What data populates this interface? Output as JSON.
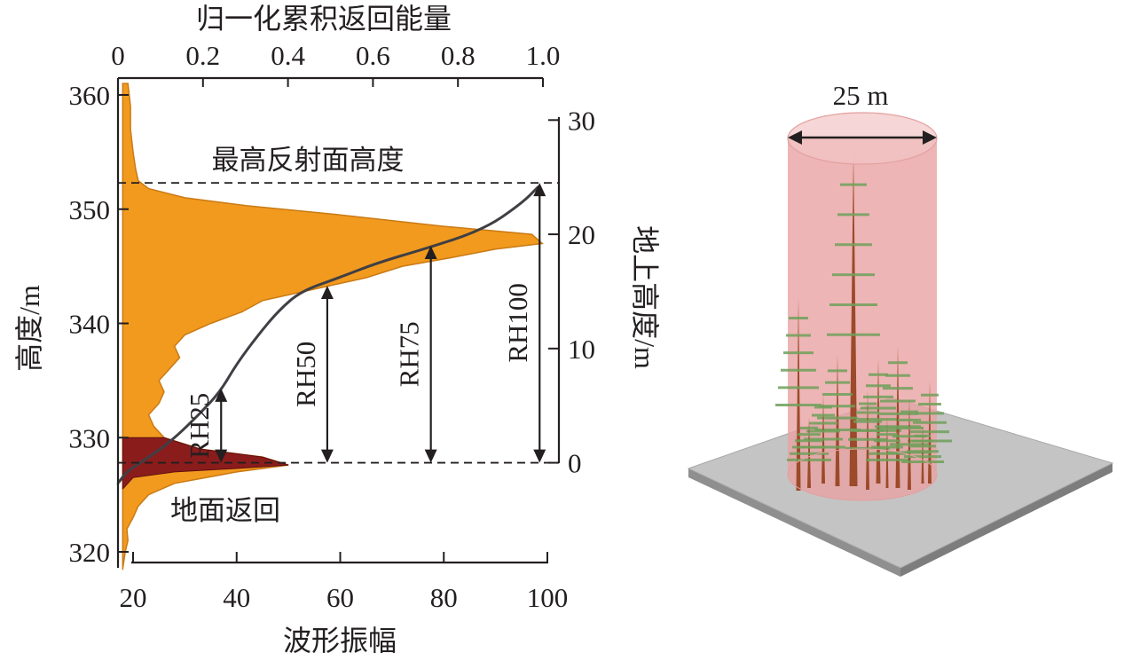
{
  "chart_data": [
    {
      "type": "area",
      "title": "",
      "bottom_axis": {
        "label": "波形振幅",
        "range": [
          20,
          100
        ],
        "ticks": [
          "20",
          "40",
          "60",
          "80",
          "100"
        ]
      },
      "top_axis": {
        "label": "归一化累积返回能量",
        "range": [
          0,
          1.0
        ],
        "ticks": [
          "0",
          "0.2",
          "0.4",
          "0.6",
          "0.8",
          "1.0"
        ]
      },
      "left_axis": {
        "label": "高度/m",
        "range": [
          318.5,
          362
        ],
        "ticks": [
          "320",
          "330",
          "340",
          "350",
          "360"
        ]
      },
      "right_axis": {
        "label": "地上高度/m",
        "range": [
          -2.5,
          31
        ],
        "ticks": [
          "0",
          "10",
          "20",
          "30"
        ]
      },
      "series": [
        {
          "name": "",
          "kind": "waveform",
          "color": "#f29a1e",
          "note": "amplitude vs height",
          "points": [
            [
              18,
              318.5
            ],
            [
              18.5,
              320
            ],
            [
              19,
              321
            ],
            [
              18.8,
              322
            ],
            [
              20,
              323
            ],
            [
              21,
              324
            ],
            [
              23,
              325
            ],
            [
              28,
              326
            ],
            [
              40,
              327
            ],
            [
              50,
              327.6
            ],
            [
              45,
              328.3
            ],
            [
              33,
              329
            ],
            [
              26,
              330
            ],
            [
              24,
              331
            ],
            [
              23,
              332
            ],
            [
              25,
              333
            ],
            [
              26,
              334
            ],
            [
              25,
              335
            ],
            [
              27,
              336
            ],
            [
              29,
              337
            ],
            [
              28,
              338
            ],
            [
              30,
              339
            ],
            [
              35,
              340
            ],
            [
              41,
              341
            ],
            [
              45,
              342
            ],
            [
              55,
              343
            ],
            [
              65,
              344
            ],
            [
              72,
              345
            ],
            [
              82,
              345.8
            ],
            [
              90,
              346.5
            ],
            [
              99,
              347
            ],
            [
              97,
              347.8
            ],
            [
              80,
              348.5
            ],
            [
              60,
              349.5
            ],
            [
              42,
              350.3
            ],
            [
              30,
              351
            ],
            [
              23,
              351.8
            ],
            [
              21,
              352.5
            ],
            [
              20.5,
              353.5
            ],
            [
              20,
              355
            ],
            [
              19.5,
              357
            ],
            [
              19.5,
              359
            ],
            [
              19,
              361
            ]
          ]
        },
        {
          "name": "地面返回",
          "kind": "ground-return",
          "color": "#8b1c1c",
          "points": [
            [
              18,
              325.5
            ],
            [
              20,
              326.5
            ],
            [
              28,
              327
            ],
            [
              40,
              327.3
            ],
            [
              50,
              327.6
            ],
            [
              45,
              328.3
            ],
            [
              33,
              329
            ],
            [
              26,
              330
            ]
          ]
        },
        {
          "name": "",
          "kind": "normalized-cumulative-return-energy",
          "color": "#3f3f44",
          "axes": "top-vs-left",
          "points": [
            [
              0,
              326
            ],
            [
              0.02,
              327
            ],
            [
              0.06,
              328
            ],
            [
              0.1,
              329
            ],
            [
              0.14,
              330.2
            ],
            [
              0.19,
              332
            ],
            [
              0.24,
              334
            ],
            [
              0.28,
              336.5
            ],
            [
              0.33,
              339
            ],
            [
              0.38,
              341.2
            ],
            [
              0.43,
              342.8
            ],
            [
              0.52,
              344
            ],
            [
              0.61,
              345.3
            ],
            [
              0.72,
              346.5
            ],
            [
              0.86,
              348.2
            ],
            [
              0.95,
              350.5
            ],
            [
              0.99,
              352
            ]
          ]
        }
      ],
      "reference_lines": [
        {
          "label": "最高反射面高度",
          "above_ground_m": 24.5
        },
        {
          "label": "",
          "above_ground_m": 0
        }
      ],
      "rh_markers": [
        {
          "label": "RH25",
          "amplitude": 37,
          "from_agl": 0,
          "to_agl": 6.5
        },
        {
          "label": "RH50",
          "amplitude": 57.5,
          "from_agl": 0,
          "to_agl": 15.5
        },
        {
          "label": "RH75",
          "amplitude": 77.5,
          "from_agl": 0,
          "to_agl": 19
        },
        {
          "label": "RH100",
          "amplitude": 98.5,
          "from_agl": 0,
          "to_agl": 24.5
        }
      ],
      "annotations": [
        "地面返回"
      ]
    }
  ],
  "illustration": {
    "footprint_label": "25 m",
    "cylinder_color": "#e9a3a3",
    "ground_color": "#c4c4c4",
    "tree_color": "#9b4a2a",
    "foliage_color": "#6fa05a"
  }
}
